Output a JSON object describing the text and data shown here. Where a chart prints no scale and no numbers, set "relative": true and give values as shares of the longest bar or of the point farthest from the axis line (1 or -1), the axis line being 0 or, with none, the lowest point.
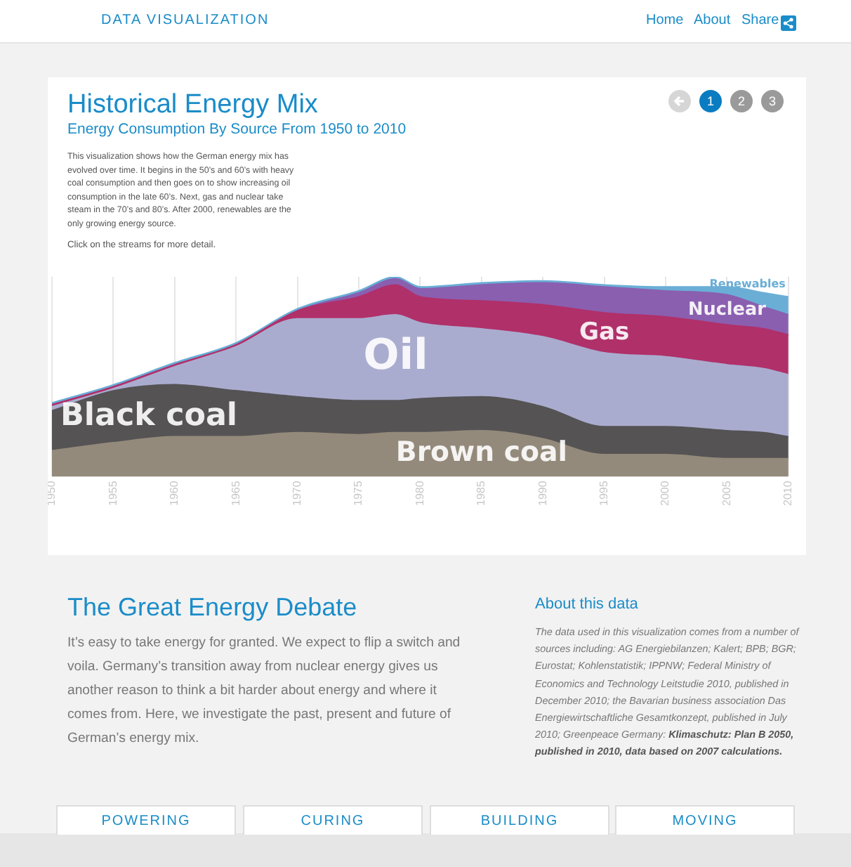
{
  "chart_data": {
    "type": "area",
    "stacked": true,
    "relative": true,
    "grid": "x",
    "legend": false,
    "title": "Historical Energy Mix",
    "subtitle": "Energy Consumption By Source From 1950 to 2010",
    "x": [
      1950,
      1955,
      1960,
      1965,
      1970,
      1975,
      1978,
      1980,
      1985,
      1990,
      1995,
      2000,
      2005,
      2008,
      2010
    ],
    "xlim": [
      1950,
      2010
    ],
    "xticks": [
      1950,
      1955,
      1960,
      1965,
      1970,
      1975,
      1980,
      1985,
      1990,
      1995,
      2000,
      2005,
      2010
    ],
    "series": [
      {
        "name": "Brown coal",
        "color": "#948a7b",
        "values": [
          0.13,
          0.17,
          0.2,
          0.2,
          0.22,
          0.21,
          0.22,
          0.22,
          0.23,
          0.19,
          0.11,
          0.11,
          0.09,
          0.09,
          0.09
        ]
      },
      {
        "name": "Black coal",
        "color": "#555354",
        "values": [
          0.2,
          0.26,
          0.26,
          0.23,
          0.18,
          0.17,
          0.16,
          0.17,
          0.17,
          0.16,
          0.14,
          0.14,
          0.14,
          0.13,
          0.11
        ]
      },
      {
        "name": "Oil",
        "color": "#aaaccf",
        "values": [
          0.02,
          0.01,
          0.09,
          0.22,
          0.39,
          0.41,
          0.43,
          0.38,
          0.34,
          0.35,
          0.37,
          0.35,
          0.33,
          0.32,
          0.31
        ]
      },
      {
        "name": "Gas",
        "color": "#b0306a",
        "values": [
          0.01,
          0.01,
          0.01,
          0.01,
          0.04,
          0.11,
          0.15,
          0.13,
          0.14,
          0.16,
          0.2,
          0.2,
          0.2,
          0.2,
          0.2
        ]
      },
      {
        "name": "Nuclear",
        "color": "#8a5fb0",
        "values": [
          0,
          0,
          0,
          0,
          0,
          0.02,
          0.03,
          0.04,
          0.08,
          0.11,
          0.13,
          0.13,
          0.15,
          0.11,
          0.1
        ]
      },
      {
        "name": "Renewables",
        "color": "#6aaed6",
        "values": [
          0.01,
          0.01,
          0.01,
          0.01,
          0.01,
          0.01,
          0.01,
          0.01,
          0.01,
          0.01,
          0.01,
          0.02,
          0.04,
          0.07,
          0.09
        ]
      }
    ],
    "annotations": [
      "DATA VISUALIZATION",
      "Home",
      "About",
      "Share",
      "1",
      "2",
      "3",
      "This visualization shows how the German energy mix has evolved over time. It begins in the 50’s and 60’s with heavy coal consumption and then goes on to show increasing oil consumption in the late 60’s. Next, gas and nuclear take steam in the 70’s and 80’s. After 2000, renewables are the only growing energy source.",
      "Click on the streams for more detail.",
      "The Great Energy Debate",
      "It’s easy to take energy for granted. We expect to flip a switch and voila. Germany’s transition away from nuclear energy gives us another reason to think a bit harder about energy and where it comes from. Here, we investigate the past, present and future of German’s energy mix.",
      "About this data",
      "The data used in this visualization comes from a number of sources including: AG Energiebilanzen; Kalert; BPB; BGR; Eurostat; Kohlenstatistik; IPPNW; Federal Ministry of Economics and Technology Leitstudie 2010, published in December 2010; the Bavarian business association Das Energiewirtschaftliche Gesamtkonzept, published in July 2010; Greenpeace Germany:",
      "Klimaschutz: Plan B 2050, published in 2010, data based on 2007 calculations.",
      "POWERING",
      "CURING",
      "BUILDING",
      "MOVING"
    ]
  }
}
